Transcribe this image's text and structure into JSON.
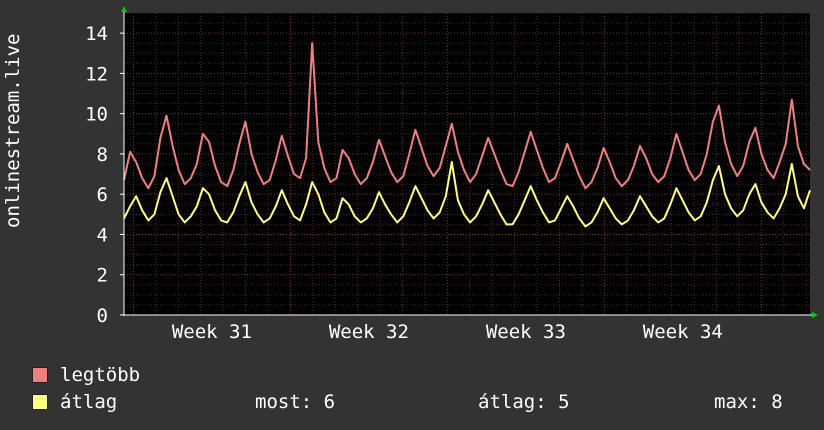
{
  "chart_data": {
    "type": "line",
    "ylabel": "onlinestream.live",
    "ylim": [
      0,
      15
    ],
    "yticks": [
      0,
      2,
      4,
      6,
      8,
      10,
      12,
      14
    ],
    "xticks": [
      "Week 31",
      "Week 32",
      "Week 33",
      "Week 34"
    ],
    "grid": true,
    "legend_placement": "bottom-left",
    "series": [
      {
        "name": "legtöbb",
        "color": "#f08080",
        "values": [
          6.7,
          8.1,
          7.6,
          6.8,
          6.3,
          6.9,
          8.8,
          9.9,
          8.4,
          7.2,
          6.5,
          6.8,
          7.5,
          9.0,
          8.6,
          7.4,
          6.6,
          6.4,
          7.2,
          8.5,
          9.6,
          8.0,
          7.1,
          6.5,
          6.7,
          7.7,
          8.9,
          7.9,
          7.0,
          6.8,
          7.8,
          13.5,
          8.6,
          7.3,
          6.6,
          6.8,
          8.2,
          7.8,
          7.0,
          6.5,
          6.8,
          7.6,
          8.7,
          7.9,
          7.1,
          6.6,
          6.9,
          8.0,
          9.2,
          8.3,
          7.4,
          6.9,
          7.3,
          8.4,
          9.5,
          8.1,
          7.2,
          6.6,
          7.0,
          7.9,
          8.8,
          8.0,
          7.2,
          6.5,
          6.4,
          7.1,
          8.1,
          9.1,
          8.2,
          7.3,
          6.6,
          6.8,
          7.6,
          8.5,
          7.7,
          6.9,
          6.3,
          6.6,
          7.3,
          8.3,
          7.6,
          6.8,
          6.4,
          6.7,
          7.4,
          8.4,
          7.8,
          7.0,
          6.6,
          6.9,
          7.8,
          9.0,
          8.1,
          7.2,
          6.7,
          7.0,
          8.0,
          9.6,
          10.4,
          8.6,
          7.5,
          6.9,
          7.4,
          8.6,
          9.3,
          8.0,
          7.2,
          6.8,
          7.6,
          8.5,
          10.7,
          8.4,
          7.5,
          7.2
        ]
      },
      {
        "name": "átlag",
        "color": "#ffff80",
        "values": [
          4.8,
          5.4,
          5.9,
          5.2,
          4.7,
          5.0,
          6.1,
          6.8,
          5.9,
          5.0,
          4.6,
          4.9,
          5.4,
          6.3,
          6.0,
          5.2,
          4.7,
          4.6,
          5.1,
          5.9,
          6.6,
          5.6,
          5.0,
          4.6,
          4.8,
          5.4,
          6.2,
          5.5,
          4.9,
          4.7,
          5.5,
          6.6,
          6.0,
          5.1,
          4.6,
          4.8,
          5.8,
          5.5,
          4.9,
          4.6,
          4.8,
          5.3,
          6.1,
          5.5,
          5.0,
          4.6,
          4.9,
          5.6,
          6.4,
          5.8,
          5.2,
          4.8,
          5.1,
          5.9,
          7.6,
          5.7,
          5.0,
          4.6,
          4.9,
          5.5,
          6.2,
          5.6,
          5.0,
          4.5,
          4.5,
          5.0,
          5.7,
          6.4,
          5.7,
          5.1,
          4.6,
          4.7,
          5.3,
          5.9,
          5.4,
          4.8,
          4.4,
          4.6,
          5.1,
          5.8,
          5.3,
          4.8,
          4.5,
          4.7,
          5.2,
          5.9,
          5.4,
          4.9,
          4.6,
          4.8,
          5.5,
          6.3,
          5.7,
          5.1,
          4.7,
          4.9,
          5.6,
          6.7,
          7.4,
          6.0,
          5.3,
          4.9,
          5.2,
          6.0,
          6.5,
          5.6,
          5.1,
          4.8,
          5.3,
          6.0,
          7.5,
          5.9,
          5.3,
          6.2
        ]
      }
    ]
  },
  "legend": {
    "max_label": "legtöbb",
    "avg_label": "átlag"
  },
  "stats": {
    "current": "most: 6",
    "average": "átlag: 5",
    "maximum": "max: 8"
  }
}
